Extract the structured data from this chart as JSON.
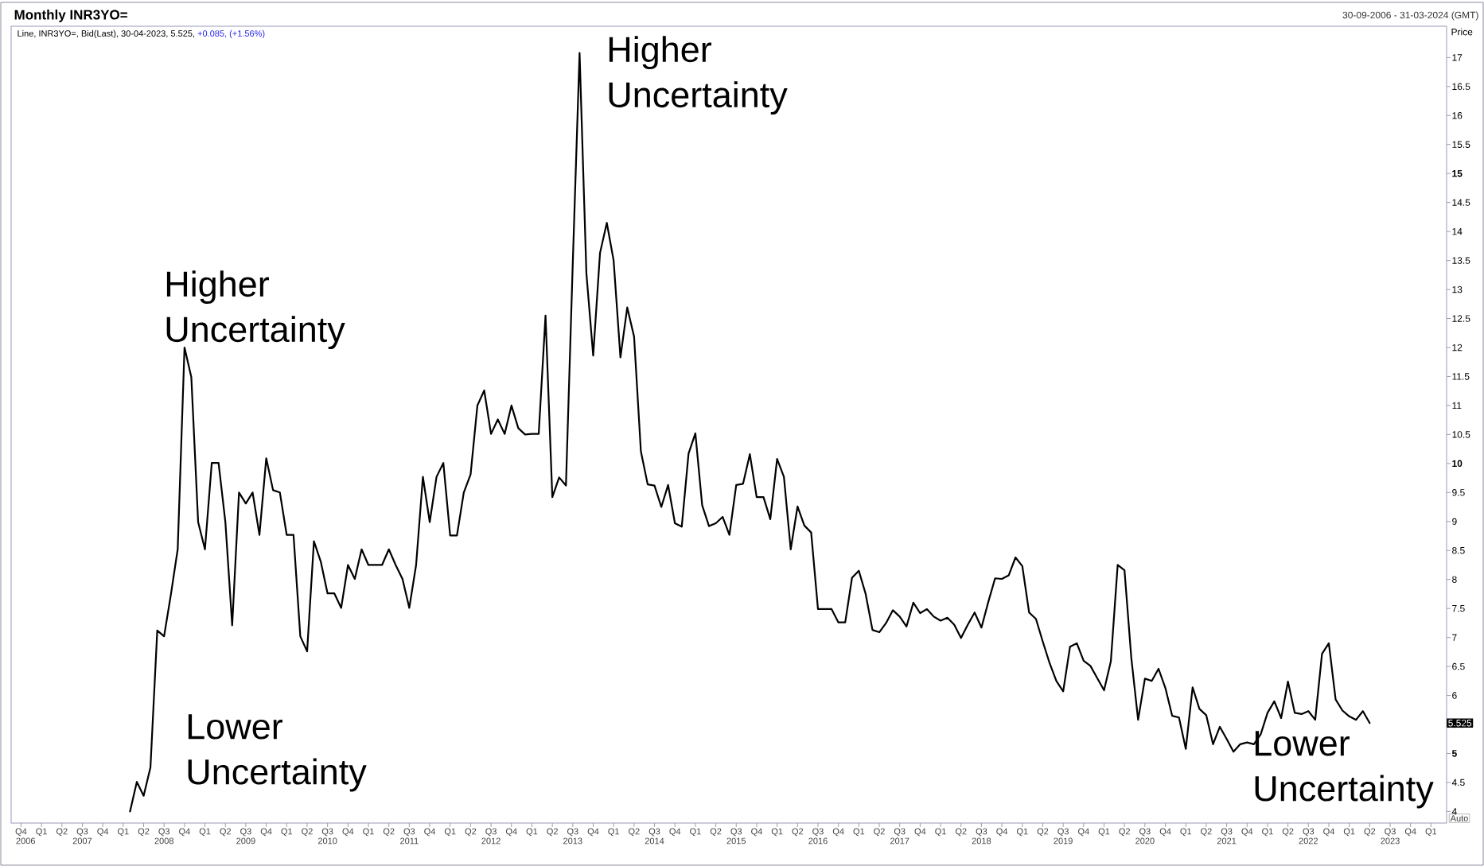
{
  "chart_data": {
    "type": "line",
    "title": "Monthly INR3YO=",
    "subtitle": "Line, INR3YO=, Bid(Last), 30-04-2023, 5.525,",
    "ylabel": "Price",
    "line_style": "solid",
    "annotations": [
      "30-09-2006 - 31-03-2024 (GMT)",
      "+0.085, (+1.56%)",
      "5.525",
      "Auto",
      "Higher Uncertainty",
      "Higher Uncertainty",
      "Lower Uncertainty",
      "Lower Uncertainty"
    ],
    "xlim": [
      "2006-08-18",
      "2024-03-10"
    ],
    "x2lim": [
      "2006-08-18",
      "2024-03-10"
    ],
    "ylim": [
      3.8,
      17.54
    ],
    "yticks": [
      4,
      4.5,
      5,
      5.5,
      6,
      6.5,
      7,
      7.5,
      8,
      8.5,
      9,
      9.5,
      10,
      10.5,
      11,
      11.5,
      12,
      12.5,
      13,
      13.5,
      14,
      14.5,
      15,
      15.5,
      16,
      16.5,
      17
    ],
    "xticks": [
      {
        "value": "2006-10",
        "label": "Q4"
      },
      {
        "value": "2007-01",
        "label": "Q1"
      },
      {
        "value": "2007-04",
        "label": "Q2"
      },
      {
        "value": "2007-07",
        "label": "Q3"
      },
      {
        "value": "2007-10",
        "label": "Q4"
      },
      {
        "value": "2008-01",
        "label": "Q1"
      },
      {
        "value": "2008-04",
        "label": "Q2"
      },
      {
        "value": "2008-07",
        "label": "Q3"
      },
      {
        "value": "2008-10",
        "label": "Q4"
      },
      {
        "value": "2009-01",
        "label": "Q1"
      },
      {
        "value": "2009-04",
        "label": "Q2"
      },
      {
        "value": "2009-07",
        "label": "Q3"
      },
      {
        "value": "2009-10",
        "label": "Q4"
      },
      {
        "value": "2010-01",
        "label": "Q1"
      },
      {
        "value": "2010-04",
        "label": "Q2"
      },
      {
        "value": "2010-07",
        "label": "Q3"
      },
      {
        "value": "2010-10",
        "label": "Q4"
      },
      {
        "value": "2011-01",
        "label": "Q1"
      },
      {
        "value": "2011-04",
        "label": "Q2"
      },
      {
        "value": "2011-07",
        "label": "Q3"
      },
      {
        "value": "2011-10",
        "label": "Q4"
      },
      {
        "value": "2012-01",
        "label": "Q1"
      },
      {
        "value": "2012-04",
        "label": "Q2"
      },
      {
        "value": "2012-07",
        "label": "Q3"
      },
      {
        "value": "2012-10",
        "label": "Q4"
      },
      {
        "value": "2013-01",
        "label": "Q1"
      },
      {
        "value": "2013-04",
        "label": "Q2"
      },
      {
        "value": "2013-07",
        "label": "Q3"
      },
      {
        "value": "2013-10",
        "label": "Q4"
      },
      {
        "value": "2014-01",
        "label": "Q1"
      },
      {
        "value": "2014-04",
        "label": "Q2"
      },
      {
        "value": "2014-07",
        "label": "Q3"
      },
      {
        "value": "2014-10",
        "label": "Q4"
      },
      {
        "value": "2015-01",
        "label": "Q1"
      },
      {
        "value": "2015-04",
        "label": "Q2"
      },
      {
        "value": "2015-07",
        "label": "Q3"
      },
      {
        "value": "2015-10",
        "label": "Q4"
      },
      {
        "value": "2016-01",
        "label": "Q1"
      },
      {
        "value": "2016-04",
        "label": "Q2"
      },
      {
        "value": "2016-07",
        "label": "Q3"
      },
      {
        "value": "2016-10",
        "label": "Q4"
      },
      {
        "value": "2017-01",
        "label": "Q1"
      },
      {
        "value": "2017-04",
        "label": "Q2"
      },
      {
        "value": "2017-07",
        "label": "Q3"
      },
      {
        "value": "2017-10",
        "label": "Q4"
      },
      {
        "value": "2018-01",
        "label": "Q1"
      },
      {
        "value": "2018-04",
        "label": "Q2"
      },
      {
        "value": "2018-07",
        "label": "Q3"
      },
      {
        "value": "2018-10",
        "label": "Q4"
      },
      {
        "value": "2019-01",
        "label": "Q1"
      },
      {
        "value": "2019-04",
        "label": "Q2"
      },
      {
        "value": "2019-07",
        "label": "Q3"
      },
      {
        "value": "2019-10",
        "label": "Q4"
      },
      {
        "value": "2020-01",
        "label": "Q1"
      },
      {
        "value": "2020-04",
        "label": "Q2"
      },
      {
        "value": "2020-07",
        "label": "Q3"
      },
      {
        "value": "2020-10",
        "label": "Q4"
      },
      {
        "value": "2021-01",
        "label": "Q1"
      },
      {
        "value": "2021-04",
        "label": "Q2"
      },
      {
        "value": "2021-07",
        "label": "Q3"
      },
      {
        "value": "2021-10",
        "label": "Q4"
      },
      {
        "value": "2022-01",
        "label": "Q1"
      },
      {
        "value": "2022-04",
        "label": "Q2"
      },
      {
        "value": "2022-07",
        "label": "Q3"
      },
      {
        "value": "2022-10",
        "label": "Q4"
      },
      {
        "value": "2023-01",
        "label": "Q1"
      },
      {
        "value": "2023-04",
        "label": "Q2"
      },
      {
        "value": "2023-07",
        "label": "Q3"
      },
      {
        "value": "2023-10",
        "label": "Q4"
      },
      {
        "value": "2024-01",
        "label": "Q1"
      }
    ],
    "x2ticks": [
      {
        "value": "2006-10-22",
        "label": "2006"
      },
      {
        "value": "2007-07",
        "label": "2007"
      },
      {
        "value": "2008-07",
        "label": "2008"
      },
      {
        "value": "2009-07",
        "label": "2009"
      },
      {
        "value": "2010-07",
        "label": "2010"
      },
      {
        "value": "2011-07",
        "label": "2011"
      },
      {
        "value": "2012-07",
        "label": "2012"
      },
      {
        "value": "2013-07",
        "label": "2013"
      },
      {
        "value": "2014-07",
        "label": "2014"
      },
      {
        "value": "2015-07",
        "label": "2015"
      },
      {
        "value": "2016-07",
        "label": "2016"
      },
      {
        "value": "2017-07",
        "label": "2017"
      },
      {
        "value": "2018-07",
        "label": "2018"
      },
      {
        "value": "2019-07",
        "label": "2019"
      },
      {
        "value": "2020-07",
        "label": "2020"
      },
      {
        "value": "2021-07",
        "label": "2021"
      },
      {
        "value": "2022-07",
        "label": "2022"
      },
      {
        "value": "2023-07",
        "label": "2023"
      }
    ],
    "x": [
      "2008-02",
      "2008-03",
      "2008-04",
      "2008-05",
      "2008-06",
      "2008-07",
      "2008-08",
      "2008-09",
      "2008-10",
      "2008-11",
      "2008-12",
      "2009-01",
      "2009-02",
      "2009-03",
      "2009-04",
      "2009-05",
      "2009-06",
      "2009-07",
      "2009-08",
      "2009-09",
      "2009-10",
      "2009-11",
      "2009-12",
      "2010-01",
      "2010-02",
      "2010-03",
      "2010-04",
      "2010-05",
      "2010-06",
      "2010-07",
      "2010-08",
      "2010-09",
      "2010-10",
      "2010-11",
      "2010-12",
      "2011-01",
      "2011-02",
      "2011-03",
      "2011-04",
      "2011-05",
      "2011-06",
      "2011-07",
      "2011-08",
      "2011-09",
      "2011-10",
      "2011-11",
      "2011-12",
      "2012-01",
      "2012-02",
      "2012-03",
      "2012-04",
      "2012-05",
      "2012-06",
      "2012-07",
      "2012-08",
      "2012-09",
      "2012-10",
      "2012-11",
      "2012-12",
      "2013-01",
      "2013-02",
      "2013-03",
      "2013-04",
      "2013-05",
      "2013-06",
      "2013-07",
      "2013-08",
      "2013-09",
      "2013-10",
      "2013-11",
      "2013-12",
      "2014-01",
      "2014-02",
      "2014-03",
      "2014-04",
      "2014-05",
      "2014-06",
      "2014-07",
      "2014-08",
      "2014-09",
      "2014-10",
      "2014-11",
      "2014-12",
      "2015-01",
      "2015-02",
      "2015-03",
      "2015-04",
      "2015-05",
      "2015-06",
      "2015-07",
      "2015-08",
      "2015-09",
      "2015-10",
      "2015-11",
      "2015-12",
      "2016-01",
      "2016-02",
      "2016-03",
      "2016-04",
      "2016-05",
      "2016-06",
      "2016-07",
      "2016-08",
      "2016-09",
      "2016-10",
      "2016-11",
      "2016-12",
      "2017-01",
      "2017-02",
      "2017-03",
      "2017-04",
      "2017-05",
      "2017-06",
      "2017-07",
      "2017-08",
      "2017-09",
      "2017-10",
      "2017-11",
      "2017-12",
      "2018-01",
      "2018-02",
      "2018-03",
      "2018-04",
      "2018-05",
      "2018-06",
      "2018-07",
      "2018-08",
      "2018-09",
      "2018-10",
      "2018-11",
      "2018-12",
      "2019-01",
      "2019-02",
      "2019-03",
      "2019-04",
      "2019-05",
      "2019-06",
      "2019-07",
      "2019-08",
      "2019-09",
      "2019-10",
      "2019-11",
      "2019-12",
      "2020-01",
      "2020-02",
      "2020-03",
      "2020-04",
      "2020-05",
      "2020-06",
      "2020-07",
      "2020-08",
      "2020-09",
      "2020-10",
      "2020-11",
      "2020-12",
      "2021-01",
      "2021-02",
      "2021-03",
      "2021-04",
      "2021-05",
      "2021-06",
      "2021-07",
      "2021-08",
      "2021-09",
      "2021-10",
      "2021-11",
      "2021-12",
      "2022-01",
      "2022-02",
      "2022-03",
      "2022-04",
      "2022-05",
      "2022-06",
      "2022-07",
      "2022-08",
      "2022-09",
      "2022-10",
      "2022-11",
      "2022-12",
      "2023-01",
      "2023-02",
      "2023-03",
      "2023-04"
    ],
    "series": [
      {
        "color": "#000000",
        "values": [
          4.0,
          4.51,
          4.27,
          4.76,
          7.12,
          7.02,
          7.74,
          8.52,
          12.0,
          11.49,
          8.99,
          8.52,
          10.01,
          10.01,
          8.99,
          7.21,
          9.5,
          9.31,
          9.5,
          8.77,
          10.09,
          9.54,
          9.5,
          8.77,
          8.77,
          7.02,
          6.76,
          8.66,
          8.31,
          7.76,
          7.76,
          7.51,
          8.25,
          8.01,
          8.52,
          8.25,
          8.25,
          8.25,
          8.52,
          8.25,
          8.01,
          7.51,
          8.25,
          9.77,
          8.99,
          9.77,
          10.01,
          8.76,
          8.76,
          9.5,
          9.81,
          11.0,
          11.26,
          10.51,
          10.76,
          10.51,
          11.0,
          10.61,
          10.5,
          10.51,
          10.51,
          12.55,
          9.42,
          9.76,
          9.62,
          13.45,
          17.08,
          13.28,
          11.86,
          13.63,
          14.15,
          13.5,
          11.83,
          12.69,
          12.19,
          10.21,
          9.64,
          9.62,
          9.25,
          9.63,
          8.97,
          8.91,
          10.17,
          10.52,
          9.28,
          8.92,
          8.97,
          9.08,
          8.77,
          9.63,
          9.65,
          10.16,
          9.42,
          9.42,
          9.04,
          10.08,
          9.77,
          8.52,
          9.26,
          8.93,
          8.81,
          7.49,
          7.49,
          7.49,
          7.26,
          7.26,
          8.03,
          8.15,
          7.75,
          7.13,
          7.09,
          7.25,
          7.47,
          7.36,
          7.19,
          7.6,
          7.42,
          7.49,
          7.36,
          7.29,
          7.34,
          7.22,
          6.99,
          7.22,
          7.43,
          7.17,
          7.61,
          8.02,
          8.01,
          8.07,
          8.38,
          8.23,
          7.43,
          7.32,
          6.93,
          6.56,
          6.25,
          6.07,
          6.84,
          6.9,
          6.6,
          6.51,
          6.3,
          6.09,
          6.59,
          8.25,
          8.16,
          6.65,
          5.58,
          6.29,
          6.25,
          6.46,
          6.13,
          5.65,
          5.62,
          5.08,
          6.14,
          5.77,
          5.66,
          5.16,
          5.46,
          5.25,
          5.03,
          5.16,
          5.19,
          5.16,
          5.33,
          5.7,
          5.9,
          5.61,
          6.24,
          5.7,
          5.68,
          5.73,
          5.58,
          6.72,
          6.9,
          5.93,
          5.74,
          5.64,
          5.58,
          5.73,
          5.525
        ]
      }
    ]
  }
}
